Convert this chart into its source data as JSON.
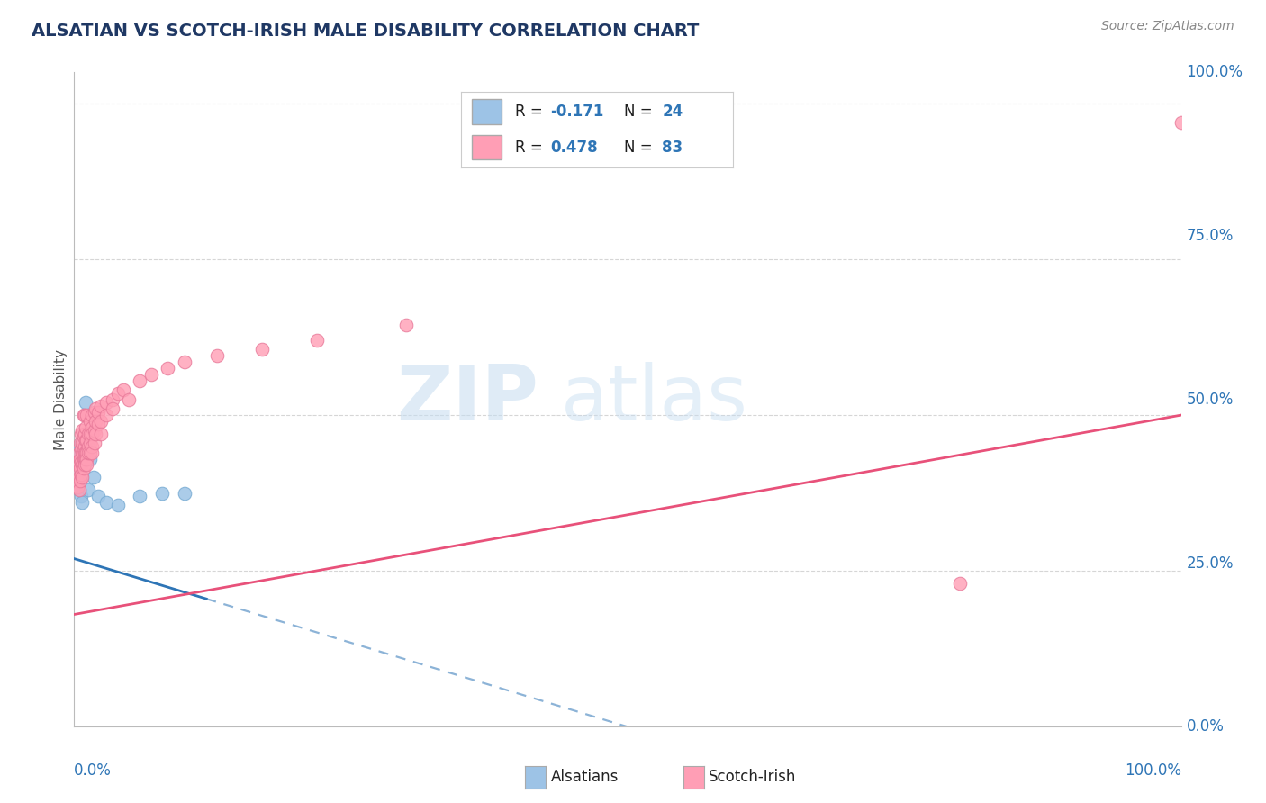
{
  "title": "ALSATIAN VS SCOTCH-IRISH MALE DISABILITY CORRELATION CHART",
  "source": "Source: ZipAtlas.com",
  "ylabel": "Male Disability",
  "ytick_vals": [
    0.0,
    0.25,
    0.5,
    0.75,
    1.0
  ],
  "ytick_labels": [
    "0.0%",
    "25.0%",
    "50.0%",
    "75.0%",
    "100.0%"
  ],
  "xlim": [
    0.0,
    1.0
  ],
  "ylim": [
    0.0,
    1.05
  ],
  "alsatian_color": "#9DC3E6",
  "alsatian_edge": "#7AADD4",
  "scotch_irish_color": "#FF9EB5",
  "scotch_irish_edge": "#E87A9A",
  "line_als_color": "#2E75B6",
  "line_si_color": "#E8517A",
  "bg_color": "#FFFFFF",
  "grid_color": "#CCCCCC",
  "title_color": "#1F3864",
  "source_color": "#888888",
  "axis_label_color": "#2E75B6",
  "watermark_color": "#C8DFF0",
  "legend_text_color": "#1F1F1F",
  "legend_val_color": "#2E75B6",
  "alsatian_label": "Alsatians",
  "si_label": "Scotch-Irish",
  "alsatian_points": [
    [
      0.003,
      0.44
    ],
    [
      0.004,
      0.435
    ],
    [
      0.004,
      0.425
    ],
    [
      0.005,
      0.42
    ],
    [
      0.005,
      0.41
    ],
    [
      0.005,
      0.395
    ],
    [
      0.005,
      0.38
    ],
    [
      0.006,
      0.415
    ],
    [
      0.006,
      0.4
    ],
    [
      0.007,
      0.455
    ],
    [
      0.007,
      0.37
    ],
    [
      0.008,
      0.36
    ],
    [
      0.009,
      0.44
    ],
    [
      0.011,
      0.52
    ],
    [
      0.012,
      0.44
    ],
    [
      0.013,
      0.38
    ],
    [
      0.015,
      0.43
    ],
    [
      0.018,
      0.4
    ],
    [
      0.022,
      0.37
    ],
    [
      0.03,
      0.36
    ],
    [
      0.04,
      0.355
    ],
    [
      0.06,
      0.37
    ],
    [
      0.08,
      0.375
    ],
    [
      0.1,
      0.375
    ]
  ],
  "si_points": [
    [
      0.003,
      0.425
    ],
    [
      0.003,
      0.41
    ],
    [
      0.004,
      0.395
    ],
    [
      0.004,
      0.385
    ],
    [
      0.005,
      0.44
    ],
    [
      0.005,
      0.42
    ],
    [
      0.005,
      0.4
    ],
    [
      0.005,
      0.38
    ],
    [
      0.006,
      0.455
    ],
    [
      0.006,
      0.43
    ],
    [
      0.006,
      0.415
    ],
    [
      0.006,
      0.395
    ],
    [
      0.007,
      0.47
    ],
    [
      0.007,
      0.445
    ],
    [
      0.007,
      0.425
    ],
    [
      0.007,
      0.405
    ],
    [
      0.008,
      0.475
    ],
    [
      0.008,
      0.455
    ],
    [
      0.008,
      0.44
    ],
    [
      0.008,
      0.42
    ],
    [
      0.008,
      0.4
    ],
    [
      0.009,
      0.5
    ],
    [
      0.009,
      0.465
    ],
    [
      0.009,
      0.445
    ],
    [
      0.009,
      0.43
    ],
    [
      0.009,
      0.415
    ],
    [
      0.01,
      0.5
    ],
    [
      0.01,
      0.47
    ],
    [
      0.01,
      0.45
    ],
    [
      0.01,
      0.44
    ],
    [
      0.01,
      0.43
    ],
    [
      0.01,
      0.42
    ],
    [
      0.011,
      0.48
    ],
    [
      0.011,
      0.46
    ],
    [
      0.011,
      0.44
    ],
    [
      0.011,
      0.43
    ],
    [
      0.012,
      0.5
    ],
    [
      0.012,
      0.46
    ],
    [
      0.012,
      0.44
    ],
    [
      0.012,
      0.43
    ],
    [
      0.012,
      0.42
    ],
    [
      0.013,
      0.47
    ],
    [
      0.013,
      0.45
    ],
    [
      0.013,
      0.44
    ],
    [
      0.015,
      0.49
    ],
    [
      0.015,
      0.47
    ],
    [
      0.015,
      0.455
    ],
    [
      0.015,
      0.44
    ],
    [
      0.017,
      0.5
    ],
    [
      0.017,
      0.48
    ],
    [
      0.017,
      0.47
    ],
    [
      0.017,
      0.45
    ],
    [
      0.017,
      0.44
    ],
    [
      0.019,
      0.505
    ],
    [
      0.019,
      0.475
    ],
    [
      0.019,
      0.455
    ],
    [
      0.02,
      0.51
    ],
    [
      0.02,
      0.49
    ],
    [
      0.02,
      0.47
    ],
    [
      0.022,
      0.505
    ],
    [
      0.022,
      0.485
    ],
    [
      0.025,
      0.515
    ],
    [
      0.025,
      0.49
    ],
    [
      0.025,
      0.47
    ],
    [
      0.03,
      0.52
    ],
    [
      0.03,
      0.5
    ],
    [
      0.035,
      0.525
    ],
    [
      0.035,
      0.51
    ],
    [
      0.04,
      0.535
    ],
    [
      0.045,
      0.54
    ],
    [
      0.05,
      0.525
    ],
    [
      0.06,
      0.555
    ],
    [
      0.07,
      0.565
    ],
    [
      0.085,
      0.575
    ],
    [
      0.1,
      0.585
    ],
    [
      0.13,
      0.595
    ],
    [
      0.17,
      0.605
    ],
    [
      0.22,
      0.62
    ],
    [
      0.3,
      0.645
    ],
    [
      0.8,
      0.23
    ],
    [
      1.0,
      0.97
    ]
  ],
  "als_line_x0": 0.0,
  "als_line_y0": 0.27,
  "als_line_x1": 0.5,
  "als_line_y1": 0.0,
  "als_line_solid_end": 0.12,
  "als_line_dash_end": 0.55,
  "si_line_x0": 0.0,
  "si_line_y0": 0.18,
  "si_line_x1": 1.0,
  "si_line_y1": 0.5
}
